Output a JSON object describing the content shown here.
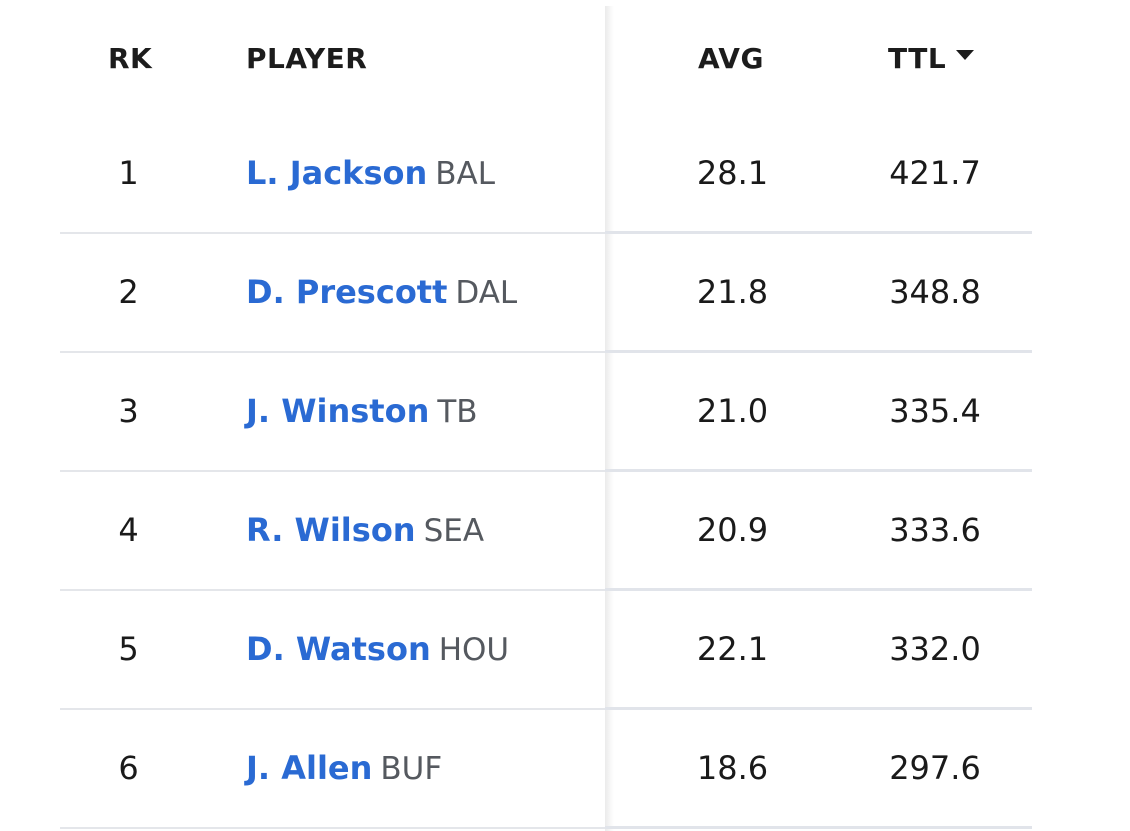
{
  "columns": {
    "rank": "RK",
    "player": "PLAYER",
    "avg": "AVG",
    "ttl": "TTL"
  },
  "sort": {
    "column": "TTL",
    "direction": "descending",
    "indicator_icon": "caret-down-icon"
  },
  "colors": {
    "player_link": "#2a6ad3",
    "team_text": "#55595f",
    "row_divider": "#e4e6ea"
  },
  "rows": [
    {
      "rank": "1",
      "name": "L. Jackson",
      "team": "BAL",
      "avg": "28.1",
      "ttl": "421.7"
    },
    {
      "rank": "2",
      "name": "D. Prescott",
      "team": "DAL",
      "avg": "21.8",
      "ttl": "348.8"
    },
    {
      "rank": "3",
      "name": "J. Winston",
      "team": "TB",
      "avg": "21.0",
      "ttl": "335.4"
    },
    {
      "rank": "4",
      "name": "R. Wilson",
      "team": "SEA",
      "avg": "20.9",
      "ttl": "333.6"
    },
    {
      "rank": "5",
      "name": "D. Watson",
      "team": "HOU",
      "avg": "22.1",
      "ttl": "332.0"
    },
    {
      "rank": "6",
      "name": "J. Allen",
      "team": "BUF",
      "avg": "18.6",
      "ttl": "297.6"
    }
  ]
}
